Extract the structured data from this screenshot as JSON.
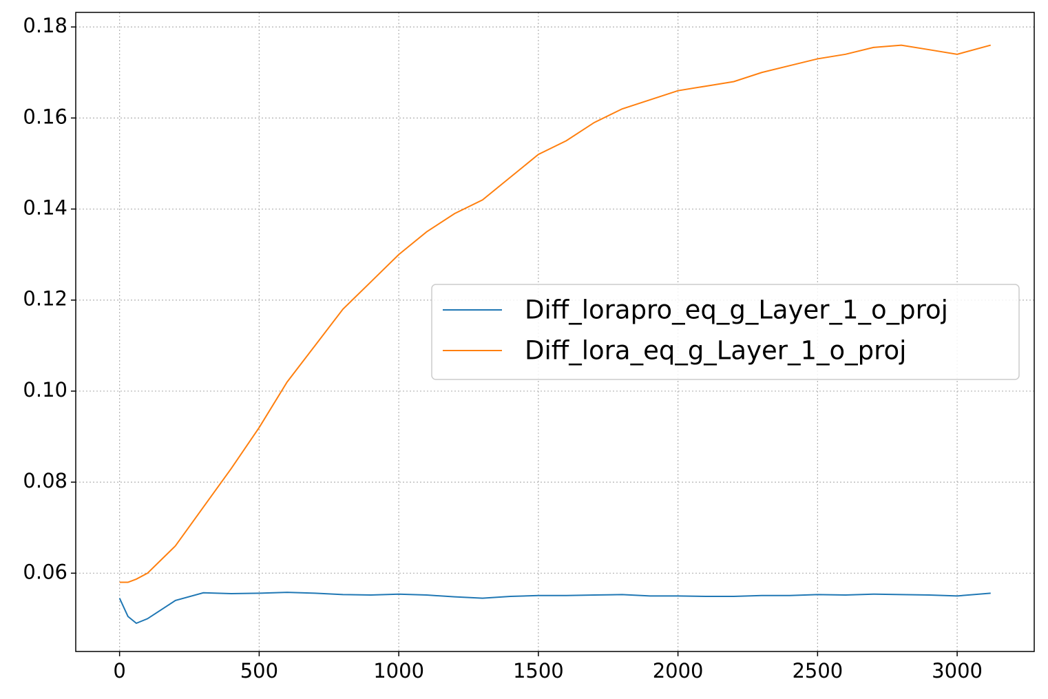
{
  "chart_data": {
    "type": "line",
    "x": [
      0,
      30,
      60,
      100,
      150,
      200,
      300,
      400,
      500,
      600,
      700,
      800,
      900,
      1000,
      1100,
      1200,
      1300,
      1400,
      1500,
      1600,
      1700,
      1800,
      1900,
      2000,
      2100,
      2200,
      2300,
      2400,
      2500,
      2600,
      2700,
      2800,
      2900,
      3000,
      3120
    ],
    "series": [
      {
        "name": "Diff_lorapro_eq_g_Layer_1_o_proj",
        "color": "#1f77b4",
        "values": [
          0.0545,
          0.0505,
          0.049,
          0.05,
          0.052,
          0.054,
          0.0557,
          0.0555,
          0.0556,
          0.0558,
          0.0556,
          0.0553,
          0.0552,
          0.0554,
          0.0552,
          0.0548,
          0.0545,
          0.0549,
          0.0551,
          0.0551,
          0.0552,
          0.0553,
          0.055,
          0.055,
          0.0549,
          0.0549,
          0.0551,
          0.0551,
          0.0553,
          0.0552,
          0.0554,
          0.0553,
          0.0552,
          0.055,
          0.0556
        ]
      },
      {
        "name": "Diff_lora_eq_g_Layer_1_o_proj",
        "color": "#ff7f0e",
        "values": [
          0.058,
          0.058,
          0.0587,
          0.06,
          0.063,
          0.066,
          0.0745,
          0.083,
          0.092,
          0.102,
          0.11,
          0.118,
          0.124,
          0.13,
          0.135,
          0.139,
          0.142,
          0.147,
          0.152,
          0.155,
          0.159,
          0.162,
          0.164,
          0.166,
          0.167,
          0.168,
          0.17,
          0.1715,
          0.173,
          0.174,
          0.1755,
          0.176,
          0.175,
          0.174,
          0.176
        ]
      }
    ],
    "xlim": [
      -157,
      3276
    ],
    "xticks": [
      0,
      500,
      1000,
      1500,
      2000,
      2500,
      3000
    ],
    "ylim": [
      0.0428,
      0.1832
    ],
    "yticks": [
      0.06,
      0.08,
      {
        "value": 0.1,
        "label": "0.10"
      },
      0.12,
      0.14,
      0.16,
      0.18
    ],
    "grid": true,
    "legend": "center right"
  }
}
